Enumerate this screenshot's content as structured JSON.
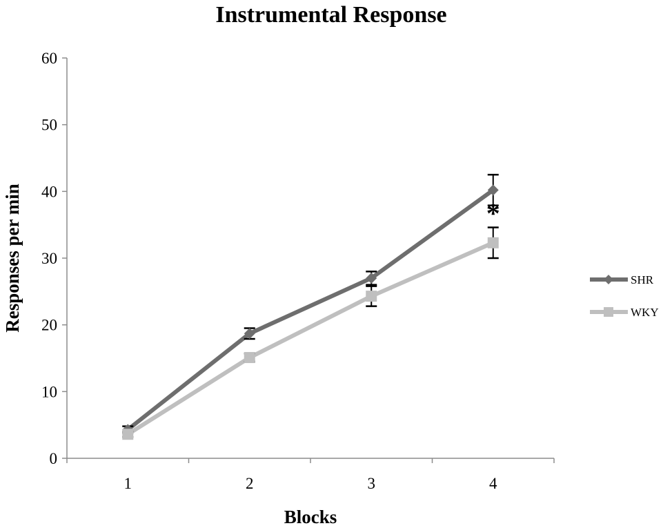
{
  "chart_data": {
    "type": "line",
    "title": "Instrumental Response",
    "xlabel": "Blocks",
    "ylabel": "Responses per min",
    "categories": [
      "1",
      "2",
      "3",
      "4"
    ],
    "ylim": [
      0,
      60
    ],
    "yticks": [
      0,
      10,
      20,
      30,
      40,
      50,
      60
    ],
    "grid": false,
    "legend_position": "right",
    "series": [
      {
        "name": "SHR",
        "color": "#6e6e6e",
        "marker": "diamond",
        "values": [
          4.3,
          18.7,
          27.0,
          40.2
        ],
        "error": [
          0.5,
          0.8,
          1.0,
          2.3
        ]
      },
      {
        "name": "WKY",
        "color": "#bfbfbf",
        "marker": "square",
        "values": [
          3.6,
          15.1,
          24.3,
          32.3
        ],
        "error": [
          0.4,
          0.6,
          1.5,
          2.3
        ]
      }
    ],
    "annotations": [
      {
        "text": "*",
        "category": "4",
        "y": 37.2
      }
    ]
  }
}
